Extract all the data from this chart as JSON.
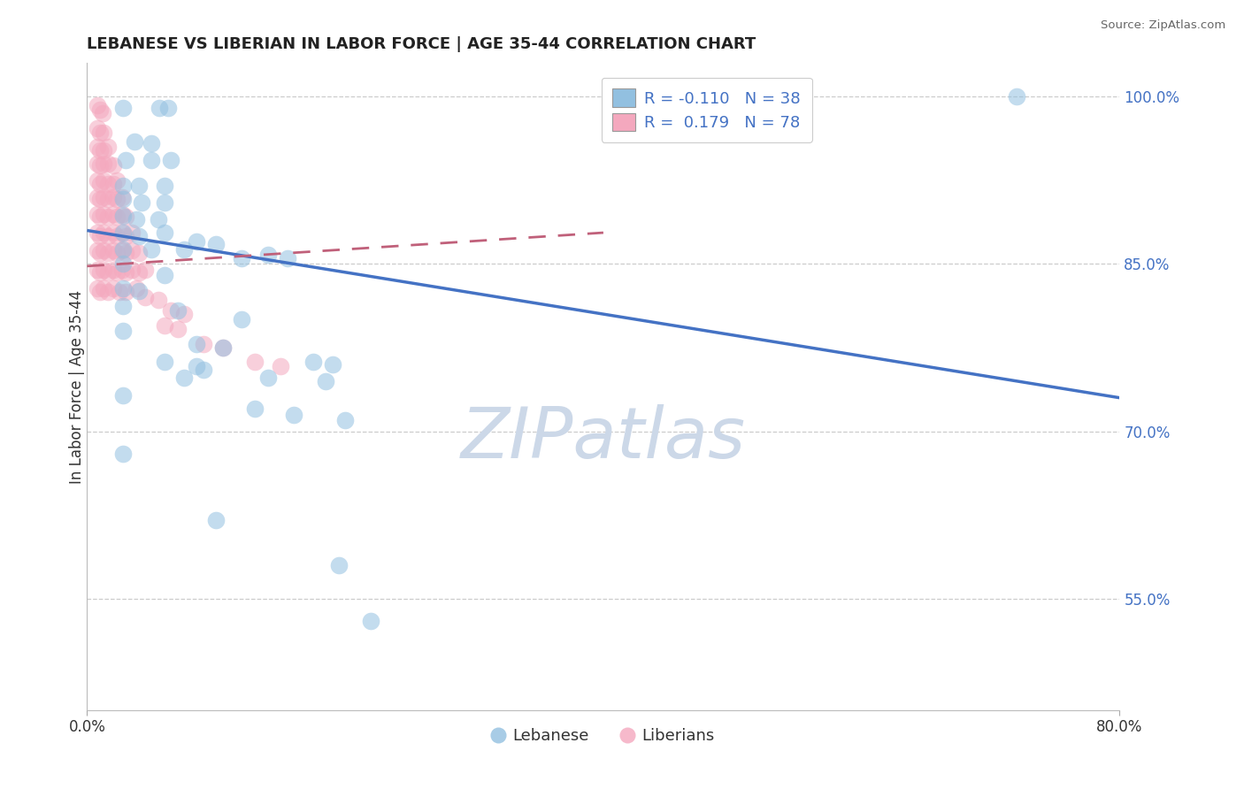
{
  "title": "LEBANESE VS LIBERIAN IN LABOR FORCE | AGE 35-44 CORRELATION CHART",
  "source": "Source: ZipAtlas.com",
  "ylabel": "In Labor Force | Age 35-44",
  "watermark": "ZIPatlas",
  "xlim": [
    0.0,
    0.8
  ],
  "ylim": [
    0.45,
    1.03
  ],
  "xtick_values": [
    0.0,
    0.8
  ],
  "xticklabels": [
    "0.0%",
    "80.0%"
  ],
  "ytick_values": [
    0.55,
    0.7,
    0.85,
    1.0
  ],
  "ytick_labels": [
    "55.0%",
    "70.0%",
    "85.0%",
    "100.0%"
  ],
  "blue_color": "#92c0e0",
  "pink_color": "#f4a8be",
  "blue_line_color": "#4472c4",
  "pink_line_color": "#c0607a",
  "background_color": "#ffffff",
  "grid_color": "#c0c0c0",
  "title_color": "#222222",
  "source_color": "#666666",
  "watermark_color": "#ccd8e8",
  "tick_label_color": "#4472c4",
  "blue_scatter": [
    [
      0.028,
      0.99
    ],
    [
      0.056,
      0.99
    ],
    [
      0.063,
      0.99
    ],
    [
      0.037,
      0.96
    ],
    [
      0.05,
      0.958
    ],
    [
      0.03,
      0.943
    ],
    [
      0.05,
      0.943
    ],
    [
      0.065,
      0.943
    ],
    [
      0.028,
      0.92
    ],
    [
      0.04,
      0.92
    ],
    [
      0.06,
      0.92
    ],
    [
      0.028,
      0.908
    ],
    [
      0.042,
      0.905
    ],
    [
      0.06,
      0.905
    ],
    [
      0.028,
      0.893
    ],
    [
      0.038,
      0.89
    ],
    [
      0.055,
      0.89
    ],
    [
      0.028,
      0.878
    ],
    [
      0.04,
      0.875
    ],
    [
      0.06,
      0.878
    ],
    [
      0.028,
      0.863
    ],
    [
      0.05,
      0.863
    ],
    [
      0.075,
      0.863
    ],
    [
      0.028,
      0.85
    ],
    [
      0.085,
      0.87
    ],
    [
      0.1,
      0.868
    ],
    [
      0.12,
      0.855
    ],
    [
      0.14,
      0.858
    ],
    [
      0.155,
      0.855
    ],
    [
      0.06,
      0.84
    ],
    [
      0.028,
      0.828
    ],
    [
      0.04,
      0.826
    ],
    [
      0.028,
      0.812
    ],
    [
      0.07,
      0.808
    ],
    [
      0.12,
      0.8
    ],
    [
      0.028,
      0.79
    ],
    [
      0.085,
      0.778
    ],
    [
      0.105,
      0.775
    ],
    [
      0.06,
      0.762
    ],
    [
      0.085,
      0.758
    ],
    [
      0.09,
      0.755
    ],
    [
      0.175,
      0.762
    ],
    [
      0.19,
      0.76
    ],
    [
      0.075,
      0.748
    ],
    [
      0.14,
      0.748
    ],
    [
      0.185,
      0.745
    ],
    [
      0.028,
      0.732
    ],
    [
      0.13,
      0.72
    ],
    [
      0.16,
      0.715
    ],
    [
      0.2,
      0.71
    ],
    [
      0.028,
      0.68
    ],
    [
      0.1,
      0.62
    ],
    [
      0.195,
      0.58
    ],
    [
      0.22,
      0.53
    ],
    [
      0.72,
      1.0
    ]
  ],
  "pink_scatter": [
    [
      0.008,
      0.992
    ],
    [
      0.01,
      0.988
    ],
    [
      0.012,
      0.985
    ],
    [
      0.008,
      0.972
    ],
    [
      0.01,
      0.968
    ],
    [
      0.013,
      0.968
    ],
    [
      0.008,
      0.955
    ],
    [
      0.01,
      0.952
    ],
    [
      0.013,
      0.952
    ],
    [
      0.016,
      0.955
    ],
    [
      0.008,
      0.94
    ],
    [
      0.01,
      0.938
    ],
    [
      0.013,
      0.94
    ],
    [
      0.016,
      0.94
    ],
    [
      0.02,
      0.938
    ],
    [
      0.008,
      0.925
    ],
    [
      0.01,
      0.922
    ],
    [
      0.013,
      0.925
    ],
    [
      0.016,
      0.922
    ],
    [
      0.02,
      0.922
    ],
    [
      0.023,
      0.925
    ],
    [
      0.008,
      0.91
    ],
    [
      0.01,
      0.908
    ],
    [
      0.013,
      0.91
    ],
    [
      0.016,
      0.908
    ],
    [
      0.02,
      0.91
    ],
    [
      0.023,
      0.908
    ],
    [
      0.027,
      0.91
    ],
    [
      0.008,
      0.895
    ],
    [
      0.01,
      0.892
    ],
    [
      0.013,
      0.895
    ],
    [
      0.016,
      0.892
    ],
    [
      0.02,
      0.895
    ],
    [
      0.023,
      0.892
    ],
    [
      0.027,
      0.895
    ],
    [
      0.03,
      0.892
    ],
    [
      0.008,
      0.878
    ],
    [
      0.01,
      0.875
    ],
    [
      0.013,
      0.878
    ],
    [
      0.016,
      0.875
    ],
    [
      0.02,
      0.878
    ],
    [
      0.023,
      0.875
    ],
    [
      0.027,
      0.878
    ],
    [
      0.03,
      0.875
    ],
    [
      0.035,
      0.878
    ],
    [
      0.008,
      0.862
    ],
    [
      0.01,
      0.86
    ],
    [
      0.013,
      0.862
    ],
    [
      0.016,
      0.86
    ],
    [
      0.02,
      0.862
    ],
    [
      0.023,
      0.86
    ],
    [
      0.027,
      0.862
    ],
    [
      0.03,
      0.86
    ],
    [
      0.035,
      0.862
    ],
    [
      0.04,
      0.86
    ],
    [
      0.008,
      0.845
    ],
    [
      0.01,
      0.842
    ],
    [
      0.013,
      0.845
    ],
    [
      0.016,
      0.842
    ],
    [
      0.02,
      0.845
    ],
    [
      0.023,
      0.842
    ],
    [
      0.027,
      0.845
    ],
    [
      0.03,
      0.842
    ],
    [
      0.035,
      0.845
    ],
    [
      0.04,
      0.842
    ],
    [
      0.045,
      0.845
    ],
    [
      0.008,
      0.828
    ],
    [
      0.01,
      0.825
    ],
    [
      0.013,
      0.828
    ],
    [
      0.016,
      0.825
    ],
    [
      0.02,
      0.828
    ],
    [
      0.025,
      0.825
    ],
    [
      0.03,
      0.825
    ],
    [
      0.038,
      0.828
    ],
    [
      0.045,
      0.82
    ],
    [
      0.055,
      0.818
    ],
    [
      0.065,
      0.808
    ],
    [
      0.075,
      0.805
    ],
    [
      0.06,
      0.795
    ],
    [
      0.07,
      0.792
    ],
    [
      0.09,
      0.778
    ],
    [
      0.105,
      0.775
    ],
    [
      0.13,
      0.762
    ],
    [
      0.15,
      0.758
    ]
  ],
  "blue_trendline": [
    [
      0.0,
      0.88
    ],
    [
      0.8,
      0.73
    ]
  ],
  "pink_trendline": [
    [
      0.0,
      0.848
    ],
    [
      0.4,
      0.878
    ]
  ]
}
